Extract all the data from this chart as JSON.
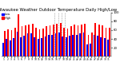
{
  "title": "Milwaukee Weather Outdoor Temperature Daily High/Low",
  "title_fontsize": 3.8,
  "bar_width": 0.4,
  "background_color": "#ffffff",
  "highs": [
    58,
    62,
    60,
    65,
    95,
    68,
    70,
    72,
    74,
    66,
    62,
    64,
    68,
    70,
    72,
    74,
    76,
    66,
    64,
    68,
    72,
    70,
    73,
    75,
    50,
    54,
    76,
    73,
    70,
    66,
    65
  ],
  "lows": [
    32,
    40,
    37,
    42,
    57,
    44,
    48,
    52,
    52,
    44,
    40,
    42,
    46,
    49,
    50,
    52,
    54,
    45,
    44,
    48,
    50,
    49,
    52,
    54,
    28,
    30,
    50,
    48,
    44,
    42,
    39
  ],
  "xlabels": [
    "1",
    "2",
    "3",
    "4",
    "5",
    "6",
    "7",
    "8",
    "9",
    "10",
    "11",
    "12",
    "13",
    "14",
    "15",
    "16",
    "17",
    "18",
    "19",
    "20",
    "21",
    "22",
    "23",
    "24",
    "25",
    "26",
    "27",
    "28",
    "29",
    "30",
    "31"
  ],
  "ylim": [
    0,
    100
  ],
  "yticks": [
    20,
    40,
    60,
    80,
    100
  ],
  "ytick_labels": [
    "20",
    "40",
    "60",
    "80",
    "100"
  ],
  "high_color": "#ff0000",
  "low_color": "#0000ff",
  "legend_high": "High",
  "legend_low": "Low",
  "dashed_indices": [
    15,
    16,
    17,
    18
  ],
  "legend_dot_high_color": "#ff0000",
  "legend_dot_low_color": "#0000ff"
}
